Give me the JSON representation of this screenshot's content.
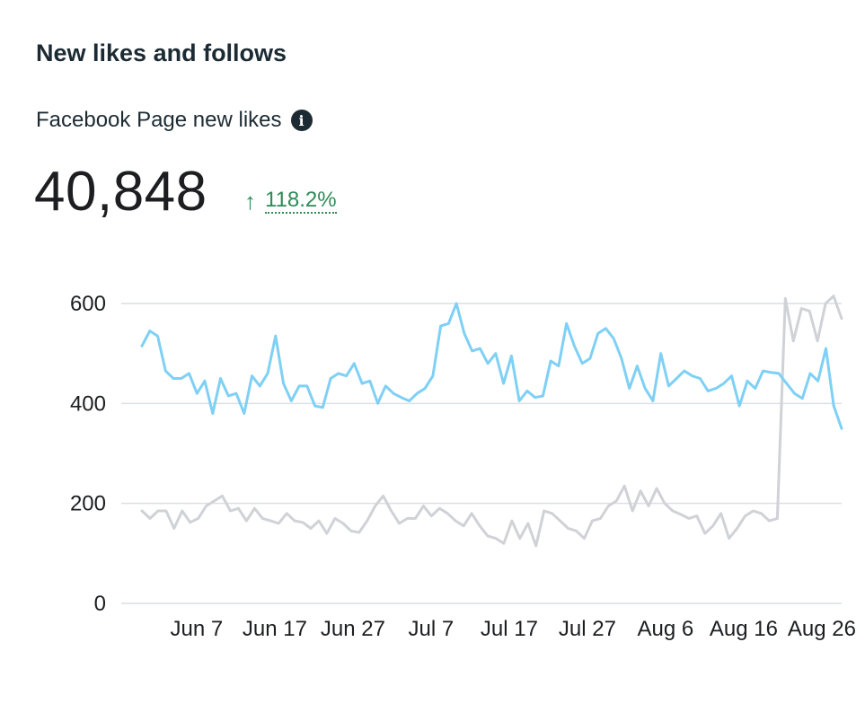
{
  "section_title": "New likes and follows",
  "metric": {
    "label": "Facebook Page new likes",
    "info_icon": "info-icon",
    "value": "40,848",
    "change_arrow": "↑",
    "change": "118.2%",
    "change_color": "#2e8b57"
  },
  "chart_data": {
    "type": "line",
    "title": "",
    "xlabel": "",
    "ylabel": "",
    "ylim": [
      0,
      600
    ],
    "yticks": [
      0,
      200,
      400,
      600
    ],
    "x_start": "2023-05-31",
    "xticks": [
      "Jun 7",
      "Jun 17",
      "Jun 27",
      "Jul 7",
      "Jul 17",
      "Jul 27",
      "Aug 6",
      "Aug 16",
      "Aug 26"
    ],
    "grid": true,
    "series": [
      {
        "name": "",
        "color": "#7fd0f5",
        "values": [
          515,
          545,
          535,
          465,
          450,
          450,
          460,
          420,
          445,
          380,
          450,
          415,
          420,
          380,
          455,
          435,
          460,
          535,
          440,
          405,
          435,
          435,
          395,
          392,
          450,
          460,
          455,
          480,
          440,
          445,
          400,
          435,
          420,
          412,
          405,
          420,
          430,
          455,
          555,
          560,
          600,
          540,
          505,
          510,
          480,
          500,
          440,
          495,
          405,
          425,
          412,
          415,
          485,
          475,
          560,
          515,
          480,
          490,
          540,
          550,
          530,
          490,
          430,
          475,
          430,
          405,
          500,
          435,
          450,
          465,
          455,
          450,
          425,
          430,
          440,
          455,
          395,
          445,
          430,
          465,
          462,
          460,
          440,
          420,
          410,
          460,
          445,
          510,
          395,
          350
        ]
      },
      {
        "name": "",
        "color": "#cfd2d6",
        "values": [
          185,
          170,
          185,
          185,
          150,
          185,
          162,
          170,
          195,
          205,
          215,
          185,
          190,
          165,
          190,
          170,
          165,
          160,
          180,
          165,
          162,
          150,
          165,
          140,
          170,
          160,
          145,
          142,
          165,
          195,
          215,
          185,
          160,
          170,
          170,
          195,
          175,
          190,
          180,
          165,
          155,
          180,
          155,
          135,
          130,
          120,
          165,
          130,
          160,
          115,
          185,
          180,
          165,
          150,
          145,
          130,
          165,
          170,
          195,
          205,
          235,
          185,
          225,
          195,
          230,
          200,
          185,
          178,
          170,
          175,
          140,
          155,
          180,
          130,
          150,
          175,
          185,
          180,
          165,
          170,
          610,
          525,
          590,
          585,
          525,
          600,
          615,
          570
        ]
      }
    ]
  }
}
